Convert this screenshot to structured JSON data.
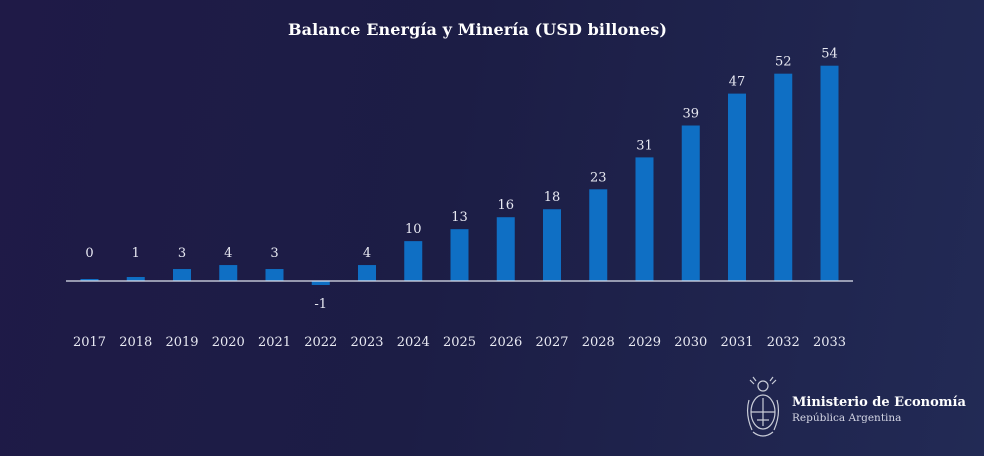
{
  "chart_data": {
    "type": "bar",
    "title": "Balance Energía y Minería (USD billones)",
    "categories": [
      "2017",
      "2018",
      "2019",
      "2020",
      "2021",
      "2022",
      "2023",
      "2024",
      "2025",
      "2026",
      "2027",
      "2028",
      "2029",
      "2030",
      "2031",
      "2032",
      "2033"
    ],
    "values": [
      0,
      1,
      3,
      4,
      3,
      -1,
      4,
      10,
      13,
      16,
      18,
      23,
      31,
      39,
      47,
      52,
      54
    ],
    "data_labels": [
      "0",
      "1",
      "3",
      "4",
      "3",
      "-1",
      "4",
      "10",
      "13",
      "16",
      "18",
      "23",
      "31",
      "39",
      "47",
      "52",
      "54"
    ],
    "xlabel": "",
    "ylabel": "",
    "grid": false,
    "bar_color": "#0f6fc4",
    "baseline_color": "#dfe3ee"
  },
  "footer": {
    "logo": "coat-of-arms-icon",
    "ministry_name": "Ministerio de Economía",
    "country": "República Argentina"
  }
}
